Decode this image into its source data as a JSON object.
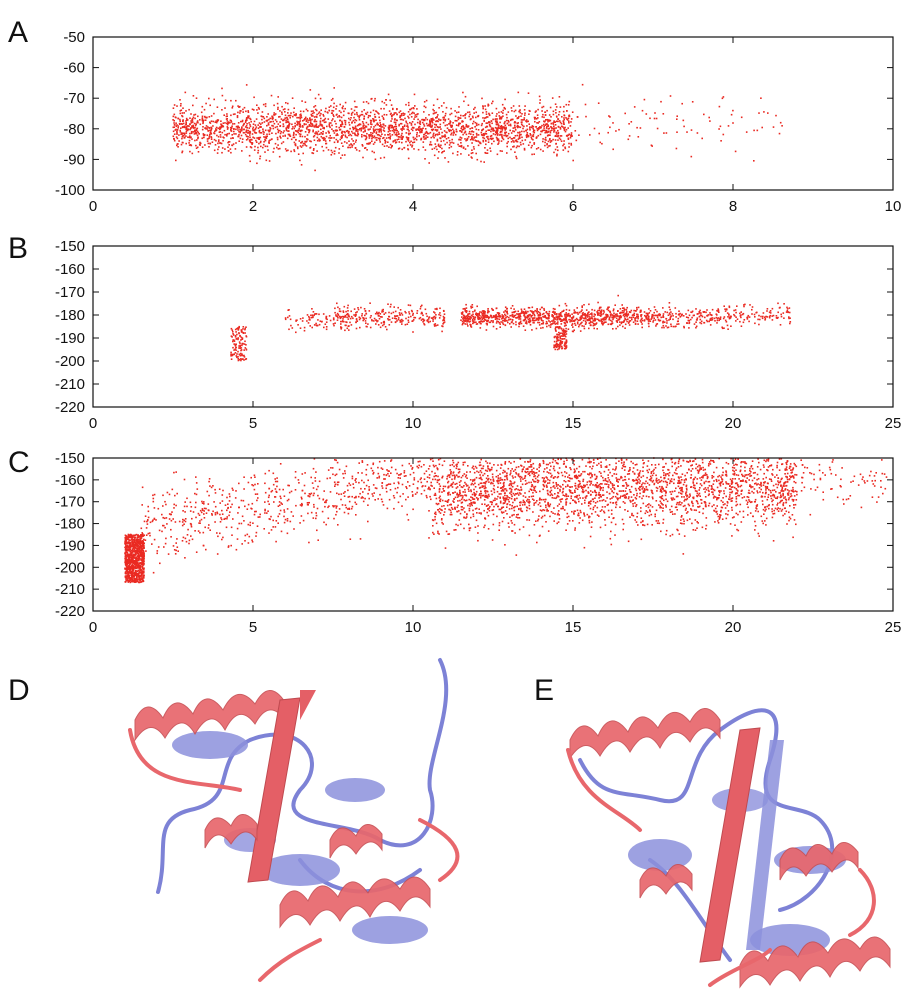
{
  "figure": {
    "panels": [
      "A",
      "B",
      "C",
      "D",
      "E"
    ],
    "colors": {
      "points": "#ea2a22",
      "structure_red": "#e8676c",
      "structure_blue": "#7d82d6"
    },
    "structure_images": [
      {
        "panel": "D",
        "content": "superposed protein ribbon structures, red and blue"
      },
      {
        "panel": "E",
        "content": "superposed protein ribbon structures, red and blue"
      }
    ]
  },
  "chart_data": [
    {
      "panel": "A",
      "type": "scatter",
      "xlim": [
        0,
        10
      ],
      "ylim": [
        -100,
        -50
      ],
      "xticks": [
        0,
        2,
        4,
        6,
        8,
        10
      ],
      "yticks": [
        -100,
        -90,
        -80,
        -70,
        -60,
        -50
      ],
      "grid": false,
      "series": [
        {
          "density_clusters": [
            {
              "x_range": [
                1.0,
                6.0
              ],
              "y_center": -80,
              "y_spread": 4,
              "density": "very dense"
            },
            {
              "x_range": [
                6.0,
                8.7
              ],
              "y_center": -79,
              "y_spread": 5,
              "density": "sparse"
            }
          ]
        }
      ]
    },
    {
      "panel": "B",
      "type": "scatter",
      "xlim": [
        0,
        25
      ],
      "ylim": [
        -220,
        -150
      ],
      "xticks": [
        0,
        5,
        10,
        15,
        20,
        25
      ],
      "yticks": [
        -220,
        -210,
        -200,
        -190,
        -180,
        -170,
        -160,
        -150
      ],
      "grid": false,
      "series": [
        {
          "density_clusters": [
            {
              "x_range": [
                4.3,
                4.8
              ],
              "y_range": [
                -200,
                -185
              ],
              "density": "small vertical cluster"
            },
            {
              "x_range": [
                6.0,
                8.0
              ],
              "y_center": -182,
              "density": "sparse"
            },
            {
              "x_range": [
                7.5,
                11.0
              ],
              "y_center": -181,
              "density": "moderate"
            },
            {
              "x_range": [
                11.5,
                17.0
              ],
              "y_center": -181,
              "density": "dense"
            },
            {
              "x_range": [
                14.4,
                14.8
              ],
              "y_range": [
                -195,
                -185
              ],
              "density": "vertical streak"
            },
            {
              "x_range": [
                17.0,
                20.0
              ],
              "y_center": -181,
              "density": "moderate"
            },
            {
              "x_range": [
                20.0,
                21.8
              ],
              "y_center": -180,
              "density": "sparse"
            }
          ]
        }
      ]
    },
    {
      "panel": "C",
      "type": "scatter",
      "xlim": [
        0,
        25
      ],
      "ylim": [
        -220,
        -150
      ],
      "xticks": [
        0,
        5,
        10,
        15,
        20,
        25
      ],
      "yticks": [
        -220,
        -210,
        -200,
        -190,
        -180,
        -170,
        -160,
        -150
      ],
      "grid": false,
      "series": [
        {
          "density_clusters": [
            {
              "x_range": [
                1.0,
                1.6
              ],
              "y_range": [
                -207,
                -185
              ],
              "density": "dense"
            },
            {
              "x_range": [
                1.5,
                10.5
              ],
              "y_range": [
                -195,
                -150
              ],
              "density": "sparse, rising trend"
            },
            {
              "x_range": [
                10.5,
                22.0
              ],
              "y_center": -164,
              "y_spread": 9,
              "density": "very dense"
            },
            {
              "x_range": [
                21.5,
                24.8
              ],
              "y_center": -160,
              "y_spread": 6,
              "density": "sparse"
            }
          ]
        }
      ]
    }
  ]
}
